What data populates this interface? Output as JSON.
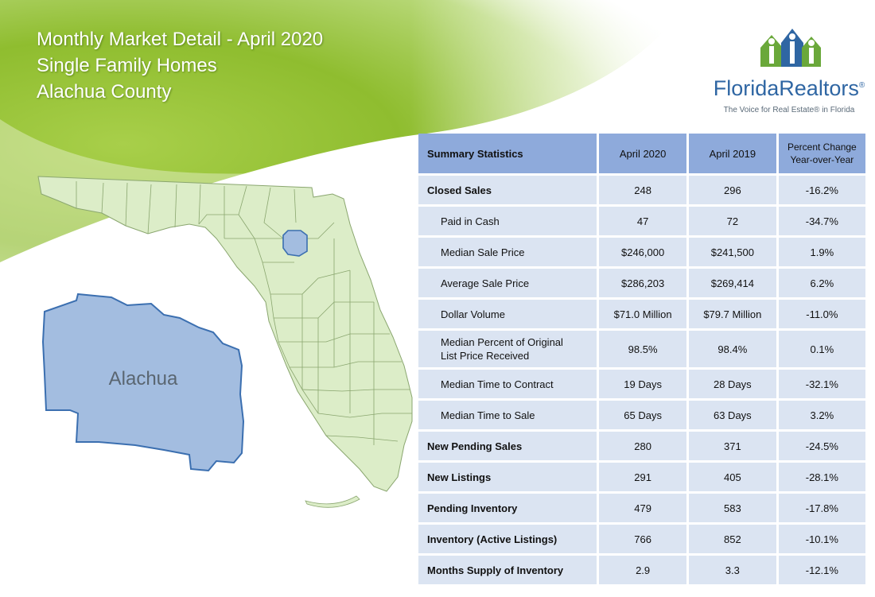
{
  "header": {
    "line1": "Monthly Market Detail - April 2020",
    "line2": "Single Family Homes",
    "line3": "Alachua County"
  },
  "logo": {
    "name": "FloridaRealtors",
    "registered": "®",
    "tagline": "The Voice for Real Estate® in Florida",
    "icon": "houses-people-icon",
    "colors": {
      "green": "#6aa83a",
      "blue": "#2f66a3"
    }
  },
  "map": {
    "county_label": "Alachua",
    "state_icon": "florida-map-icon",
    "colors": {
      "state_fill": "#dcedc8",
      "county_fill": "#a3bde0",
      "county_stroke": "#3b6fb0"
    }
  },
  "table": {
    "headers": {
      "label": "Summary Statistics",
      "current": "April 2020",
      "previous": "April 2019",
      "change_line1": "Percent Change",
      "change_line2": "Year-over-Year"
    },
    "rows": [
      {
        "label": "Closed Sales",
        "current": "248",
        "previous": "296",
        "change": "-16.2%"
      },
      {
        "label": "Paid in Cash",
        "current": "47",
        "previous": "72",
        "change": "-34.7%"
      },
      {
        "label": "Median Sale Price",
        "current": "$246,000",
        "previous": "$241,500",
        "change": "1.9%"
      },
      {
        "label": "Average Sale Price",
        "current": "$286,203",
        "previous": "$269,414",
        "change": "6.2%"
      },
      {
        "label": "Dollar Volume",
        "current": "$71.0 Million",
        "previous": "$79.7 Million",
        "change": "-11.0%"
      },
      {
        "label_line1": "Median Percent of Original",
        "label_line2": "List Price Received",
        "current": "98.5%",
        "previous": "98.4%",
        "change": "0.1%"
      },
      {
        "label": "Median Time to Contract",
        "current": "19 Days",
        "previous": "28 Days",
        "change": "-32.1%"
      },
      {
        "label": "Median Time to Sale",
        "current": "65 Days",
        "previous": "63 Days",
        "change": "3.2%"
      },
      {
        "label": "New Pending Sales",
        "current": "280",
        "previous": "371",
        "change": "-24.5%"
      },
      {
        "label": "New Listings",
        "current": "291",
        "previous": "405",
        "change": "-28.1%"
      },
      {
        "label": "Pending Inventory",
        "current": "479",
        "previous": "583",
        "change": "-17.8%"
      },
      {
        "label": "Inventory (Active Listings)",
        "current": "766",
        "previous": "852",
        "change": "-10.1%"
      },
      {
        "label": "Months Supply of Inventory",
        "current": "2.9",
        "previous": "3.3",
        "change": "-12.1%"
      }
    ]
  }
}
